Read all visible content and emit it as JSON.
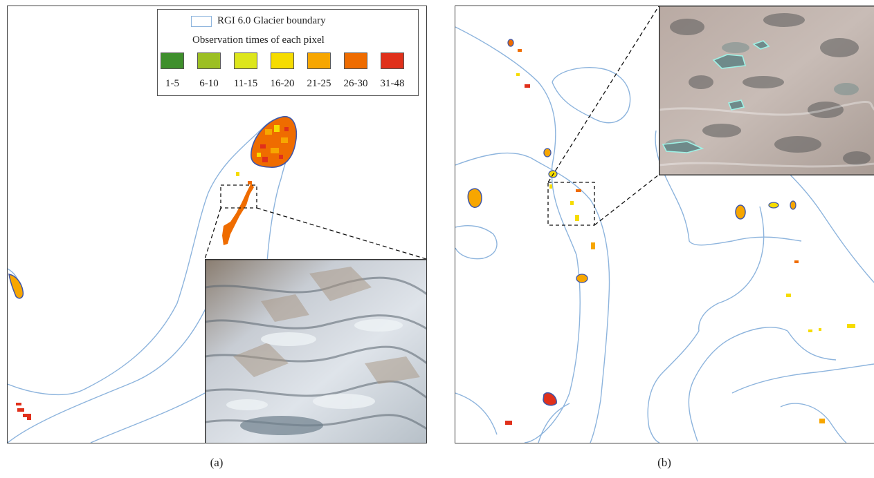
{
  "figure": {
    "caption_a": "(a)",
    "caption_b": "(b)"
  },
  "legend": {
    "boundary_label": "RGI 6.0 Glacier boundary",
    "boundary_color": "#8db4dd",
    "observation_title": "Observation times of each pixel",
    "classes": [
      {
        "label": "1-5",
        "color": "#3e8f2c"
      },
      {
        "label": "6-10",
        "color": "#9cbf23"
      },
      {
        "label": "11-15",
        "color": "#dde61c"
      },
      {
        "label": "16-20",
        "color": "#f6dc00"
      },
      {
        "label": "21-25",
        "color": "#f7a600"
      },
      {
        "label": "26-30",
        "color": "#ef6c00"
      },
      {
        "label": "31-48",
        "color": "#e0301b"
      }
    ]
  },
  "colors": {
    "glacier_boundary": "#8db4dd",
    "lake_outline": "#3f56a8",
    "frame": "#3a3a3a"
  }
}
